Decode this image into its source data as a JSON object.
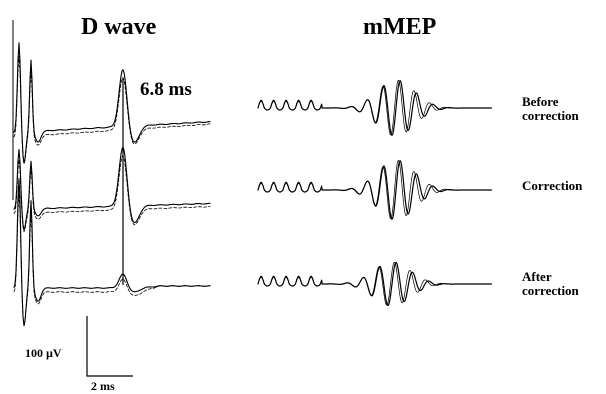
{
  "chart_data": [
    {
      "type": "line",
      "title": "D wave",
      "latency_label": "6.8 ms",
      "series": [
        {
          "label_lines": [
            "Before",
            "correction"
          ]
        },
        {
          "label_lines": [
            "Correction"
          ]
        },
        {
          "label_lines": [
            "After",
            "correction"
          ]
        }
      ],
      "scale_bar": {
        "amplitude": "100 µV",
        "time": "2 ms"
      }
    },
    {
      "type": "line",
      "title": "mMEP",
      "series": [
        {
          "label_lines": [
            "Before",
            "correction"
          ]
        },
        {
          "label_lines": [
            "Correction"
          ]
        },
        {
          "label_lines": [
            "After",
            "correction"
          ]
        }
      ]
    }
  ]
}
